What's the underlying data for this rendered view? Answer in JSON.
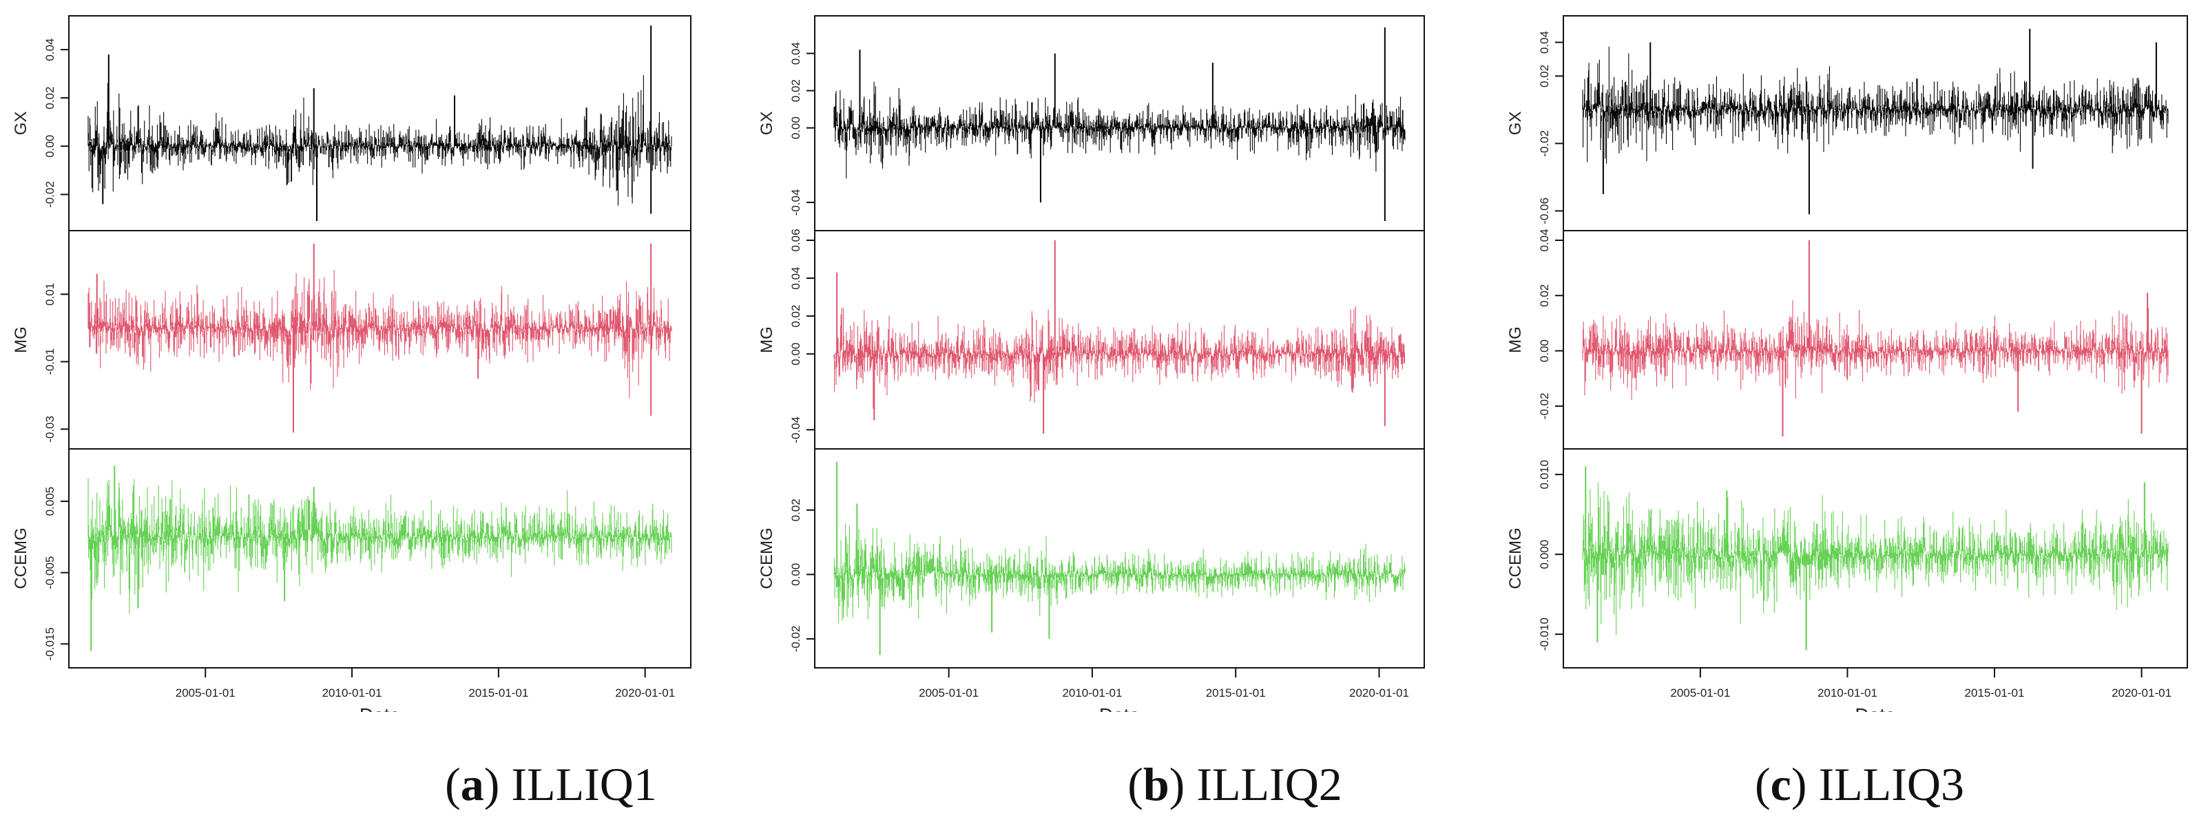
{
  "colors": {
    "GX": "#000000",
    "MG": "#df536b",
    "CCEMG": "#61d04f",
    "frame": "#111111"
  },
  "chart_data": [
    {
      "type": "line",
      "caption_letter": "a",
      "caption_name": "ILLIQ1",
      "x_range": [
        2001.0,
        2020.9
      ],
      "x_ticks": [
        "2005-01-01",
        "2010-01-01",
        "2015-01-01",
        "2020-01-01"
      ],
      "x_tick_years": [
        2005,
        2010,
        2015,
        2020
      ],
      "xlabel_fragment": "Date",
      "panels": [
        {
          "name": "GX",
          "ylabel": "GX",
          "ylim": [
            -0.031,
            0.05
          ],
          "yticks": [
            -0.02,
            0.0,
            0.02,
            0.04
          ],
          "ytick_labels": [
            "-0.02",
            "0.00",
            "0.02",
            "0.04"
          ],
          "volatility": [
            0.009,
            0.008,
            0.006,
            0.005,
            0.005,
            0.004,
            0.005,
            0.008,
            0.006,
            0.004,
            0.004,
            0.004,
            0.004,
            0.004,
            0.005,
            0.004,
            0.004,
            0.005,
            0.006,
            0.01,
            0.006
          ],
          "spikes": [
            [
              2001.7,
              0.038
            ],
            [
              2001.5,
              -0.024
            ],
            [
              2008.7,
              0.024
            ],
            [
              2008.8,
              -0.031
            ],
            [
              2013.5,
              0.021
            ],
            [
              2020.2,
              0.05
            ],
            [
              2020.2,
              -0.028
            ],
            [
              2018.0,
              0.016
            ]
          ]
        },
        {
          "name": "MG",
          "ylabel": "MG",
          "ylim": [
            -0.033,
            0.026
          ],
          "yticks": [
            -0.03,
            -0.01,
            0.01
          ],
          "ytick_labels": [
            "-0.03",
            "-0.01",
            "0.01"
          ],
          "volatility": [
            0.006,
            0.006,
            0.005,
            0.005,
            0.005,
            0.005,
            0.005,
            0.008,
            0.007,
            0.005,
            0.004,
            0.004,
            0.004,
            0.004,
            0.005,
            0.004,
            0.004,
            0.004,
            0.005,
            0.007,
            0.005
          ],
          "spikes": [
            [
              2008.7,
              0.025
            ],
            [
              2008.0,
              -0.031
            ],
            [
              2020.2,
              0.025
            ],
            [
              2020.2,
              -0.026
            ],
            [
              2001.3,
              0.016
            ],
            [
              2014.3,
              -0.015
            ]
          ]
        },
        {
          "name": "CCEMG",
          "ylabel": "CCEMG",
          "ylim": [
            -0.017,
            0.011
          ],
          "yticks": [
            -0.015,
            -0.005,
            0.005
          ],
          "ytick_labels": [
            "-0.015",
            "-0.005",
            "0.005"
          ],
          "volatility": [
            0.004,
            0.004,
            0.003,
            0.003,
            0.003,
            0.003,
            0.003,
            0.003,
            0.003,
            0.002,
            0.002,
            0.002,
            0.002,
            0.002,
            0.002,
            0.002,
            0.002,
            0.002,
            0.002,
            0.002,
            0.002
          ],
          "spikes": [
            [
              2001.1,
              -0.016
            ],
            [
              2001.9,
              0.01
            ],
            [
              2002.7,
              -0.01
            ],
            [
              2008.7,
              0.007
            ],
            [
              2007.7,
              -0.009
            ]
          ]
        }
      ]
    },
    {
      "type": "line",
      "caption_letter": "b",
      "caption_name": "ILLIQ2",
      "x_range": [
        2001.0,
        2020.9
      ],
      "x_ticks": [
        "2005-01-01",
        "2010-01-01",
        "2015-01-01",
        "2020-01-01"
      ],
      "x_tick_years": [
        2005,
        2010,
        2015,
        2020
      ],
      "xlabel_fragment": "Date",
      "panels": [
        {
          "name": "GX",
          "ylabel": "GX",
          "ylim": [
            -0.05,
            0.055
          ],
          "yticks": [
            -0.04,
            0.0,
            0.02,
            0.04
          ],
          "ytick_labels": [
            "-0.04",
            "0.00",
            "0.02",
            "0.04"
          ],
          "volatility": [
            0.01,
            0.009,
            0.008,
            0.006,
            0.006,
            0.006,
            0.006,
            0.009,
            0.008,
            0.006,
            0.006,
            0.005,
            0.005,
            0.005,
            0.006,
            0.005,
            0.005,
            0.006,
            0.006,
            0.01,
            0.007
          ],
          "spikes": [
            [
              2001.9,
              0.042
            ],
            [
              2008.7,
              0.04
            ],
            [
              2008.2,
              -0.04
            ],
            [
              2020.2,
              0.054
            ],
            [
              2020.2,
              -0.05
            ],
            [
              2014.2,
              0.035
            ]
          ]
        },
        {
          "name": "MG",
          "ylabel": "MG",
          "ylim": [
            -0.045,
            0.06
          ],
          "yticks": [
            -0.04,
            0.0,
            0.02,
            0.04,
            0.06
          ],
          "ytick_labels": [
            "-0.04",
            "0.00",
            "0.02",
            "0.04",
            "0.06"
          ],
          "volatility": [
            0.01,
            0.01,
            0.008,
            0.007,
            0.007,
            0.007,
            0.007,
            0.012,
            0.009,
            0.007,
            0.006,
            0.006,
            0.006,
            0.006,
            0.006,
            0.006,
            0.006,
            0.006,
            0.007,
            0.01,
            0.007
          ],
          "spikes": [
            [
              2008.7,
              0.06
            ],
            [
              2001.1,
              0.043
            ],
            [
              2008.3,
              -0.042
            ],
            [
              2020.2,
              -0.038
            ],
            [
              2002.4,
              -0.035
            ]
          ]
        },
        {
          "name": "CCEMG",
          "ylabel": "CCEMG",
          "ylim": [
            -0.026,
            0.036
          ],
          "yticks": [
            -0.02,
            0.0,
            0.02
          ],
          "ytick_labels": [
            "-0.02",
            "0.00",
            "0.02"
          ],
          "volatility": [
            0.007,
            0.007,
            0.006,
            0.005,
            0.005,
            0.004,
            0.004,
            0.005,
            0.004,
            0.003,
            0.003,
            0.003,
            0.003,
            0.003,
            0.003,
            0.003,
            0.003,
            0.003,
            0.003,
            0.004,
            0.003
          ],
          "spikes": [
            [
              2001.1,
              0.035
            ],
            [
              2002.6,
              -0.025
            ],
            [
              2006.5,
              -0.018
            ],
            [
              2008.5,
              -0.02
            ],
            [
              2001.8,
              0.022
            ]
          ]
        }
      ]
    },
    {
      "type": "line",
      "caption_letter": "c",
      "caption_name": "ILLIQ3",
      "x_range": [
        2001.0,
        2020.9
      ],
      "x_ticks": [
        "2005-01-01",
        "2010-01-01",
        "2015-01-01",
        "2020-01-01"
      ],
      "x_tick_years": [
        2005,
        2010,
        2015,
        2020
      ],
      "xlabel_fragment": "Date",
      "panels": [
        {
          "name": "GX",
          "ylabel": "GX",
          "ylim": [
            -0.066,
            0.05
          ],
          "yticks": [
            -0.06,
            -0.02,
            0.02,
            0.04
          ],
          "ytick_labels": [
            "-0.06",
            "-0.02",
            "0.02",
            "0.04"
          ],
          "volatility": [
            0.014,
            0.013,
            0.012,
            0.01,
            0.009,
            0.008,
            0.008,
            0.012,
            0.01,
            0.008,
            0.008,
            0.008,
            0.008,
            0.008,
            0.009,
            0.009,
            0.008,
            0.008,
            0.008,
            0.012,
            0.009
          ],
          "spikes": [
            [
              2001.7,
              -0.05
            ],
            [
              2008.7,
              -0.062
            ],
            [
              2016.2,
              0.048
            ],
            [
              2020.5,
              0.04
            ],
            [
              2003.3,
              0.04
            ],
            [
              2016.3,
              -0.035
            ]
          ]
        },
        {
          "name": "MG",
          "ylabel": "MG",
          "ylim": [
            -0.032,
            0.04
          ],
          "yticks": [
            -0.02,
            0.0,
            0.02,
            0.04
          ],
          "ytick_labels": [
            "-0.02",
            "0.00",
            "0.02",
            "0.04"
          ],
          "volatility": [
            0.007,
            0.007,
            0.006,
            0.005,
            0.005,
            0.005,
            0.005,
            0.008,
            0.006,
            0.005,
            0.004,
            0.004,
            0.004,
            0.004,
            0.005,
            0.004,
            0.004,
            0.004,
            0.005,
            0.007,
            0.005
          ],
          "spikes": [
            [
              2008.7,
              0.04
            ],
            [
              2007.8,
              -0.031
            ],
            [
              2020.2,
              0.021
            ],
            [
              2020.0,
              -0.03
            ],
            [
              2015.8,
              -0.022
            ]
          ]
        },
        {
          "name": "CCEMG",
          "ylabel": "CCEMG",
          "ylim": [
            -0.013,
            0.012
          ],
          "yticks": [
            -0.01,
            0.0,
            0.01
          ],
          "ytick_labels": [
            "-0.010",
            "0.000",
            "0.010"
          ],
          "volatility": [
            0.004,
            0.004,
            0.003,
            0.003,
            0.003,
            0.003,
            0.003,
            0.003,
            0.003,
            0.002,
            0.002,
            0.002,
            0.002,
            0.002,
            0.002,
            0.002,
            0.002,
            0.002,
            0.002,
            0.003,
            0.002
          ],
          "spikes": [
            [
              2001.1,
              0.011
            ],
            [
              2008.6,
              -0.012
            ],
            [
              2001.5,
              -0.011
            ],
            [
              2020.1,
              0.009
            ],
            [
              2005.9,
              0.008
            ]
          ]
        }
      ]
    }
  ]
}
